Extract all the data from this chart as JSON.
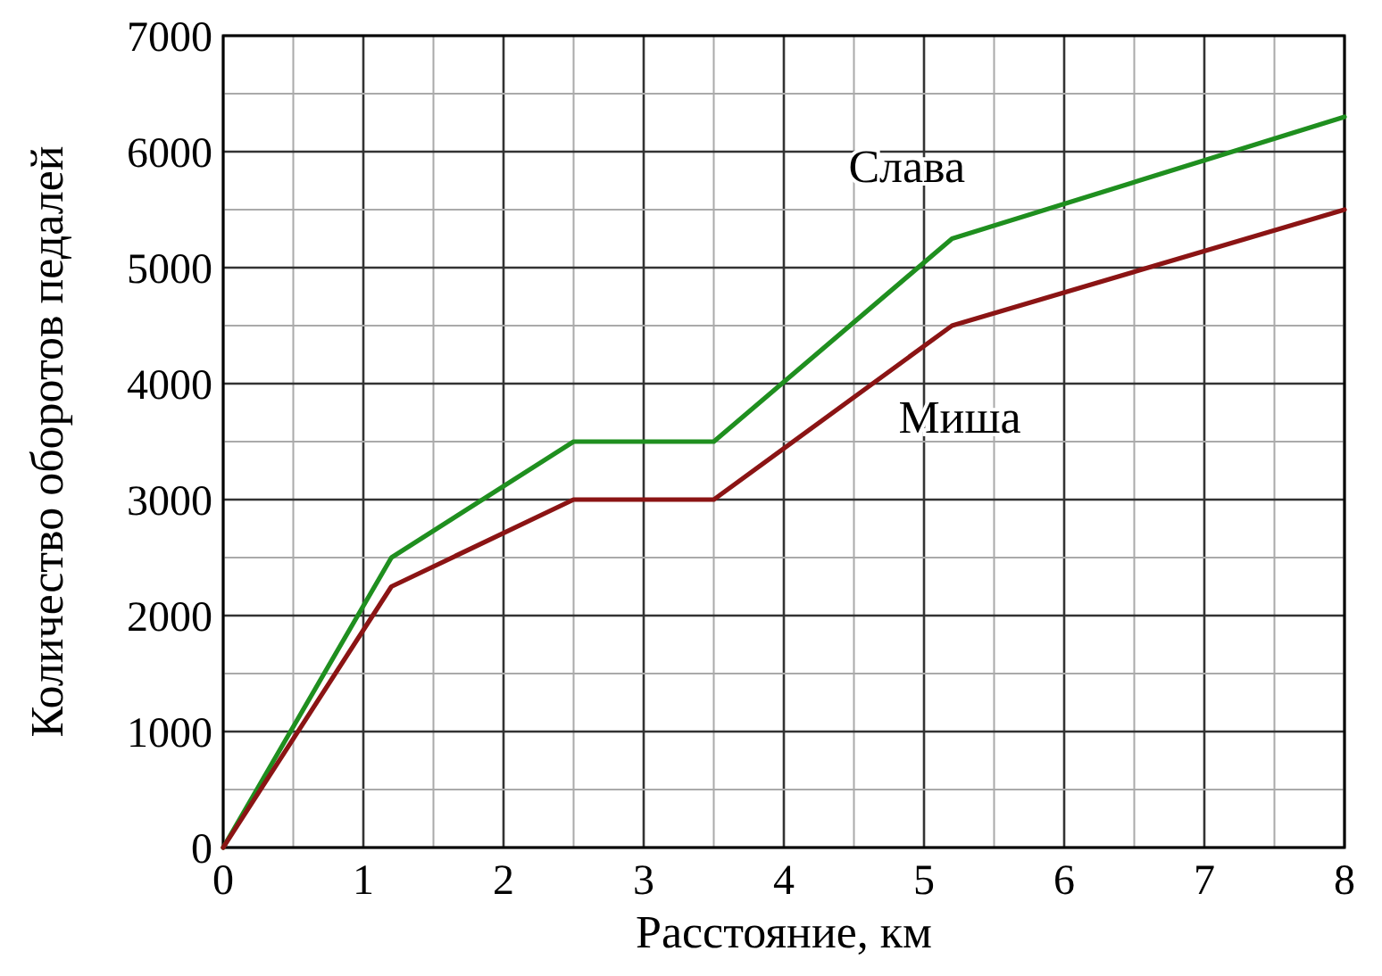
{
  "chart_data": {
    "type": "line",
    "xlabel": "Расстояние, км",
    "ylabel": "Количество оборотов педалей",
    "x": [
      0,
      1.2,
      2.5,
      3.5,
      5.2,
      8
    ],
    "series": [
      {
        "name": "Слава",
        "color": "#1f8f1f",
        "values": [
          0,
          2500,
          3500,
          3500,
          5250,
          6300
        ]
      },
      {
        "name": "Миша",
        "color": "#8b1414",
        "values": [
          0,
          2250,
          3000,
          3000,
          4500,
          5500
        ]
      }
    ],
    "xlim": [
      0,
      8
    ],
    "ylim": [
      0,
      7000
    ],
    "xticks": [
      0,
      {
        "value": 0.5,
        "label": null
      },
      1,
      {
        "value": 1.5,
        "label": null
      },
      2,
      {
        "value": 2.5,
        "label": null
      },
      3,
      {
        "value": 3.5,
        "label": null
      },
      4,
      {
        "value": 4.5,
        "label": null
      },
      5,
      {
        "value": 5.5,
        "label": null
      },
      6,
      {
        "value": 6.5,
        "label": null
      },
      7,
      {
        "value": 7.5,
        "label": null
      },
      8
    ],
    "yticks": [
      0,
      {
        "value": 500,
        "label": null
      },
      1000,
      {
        "value": 1500,
        "label": null
      },
      2000,
      {
        "value": 2500,
        "label": null
      },
      3000,
      {
        "value": 3500,
        "label": null
      },
      4000,
      {
        "value": 4500,
        "label": null
      },
      5000,
      {
        "value": 5500,
        "label": null
      },
      6000,
      {
        "value": 6500,
        "label": null
      },
      7000
    ],
    "grid": true,
    "marker": "none",
    "line_style": "solid"
  }
}
